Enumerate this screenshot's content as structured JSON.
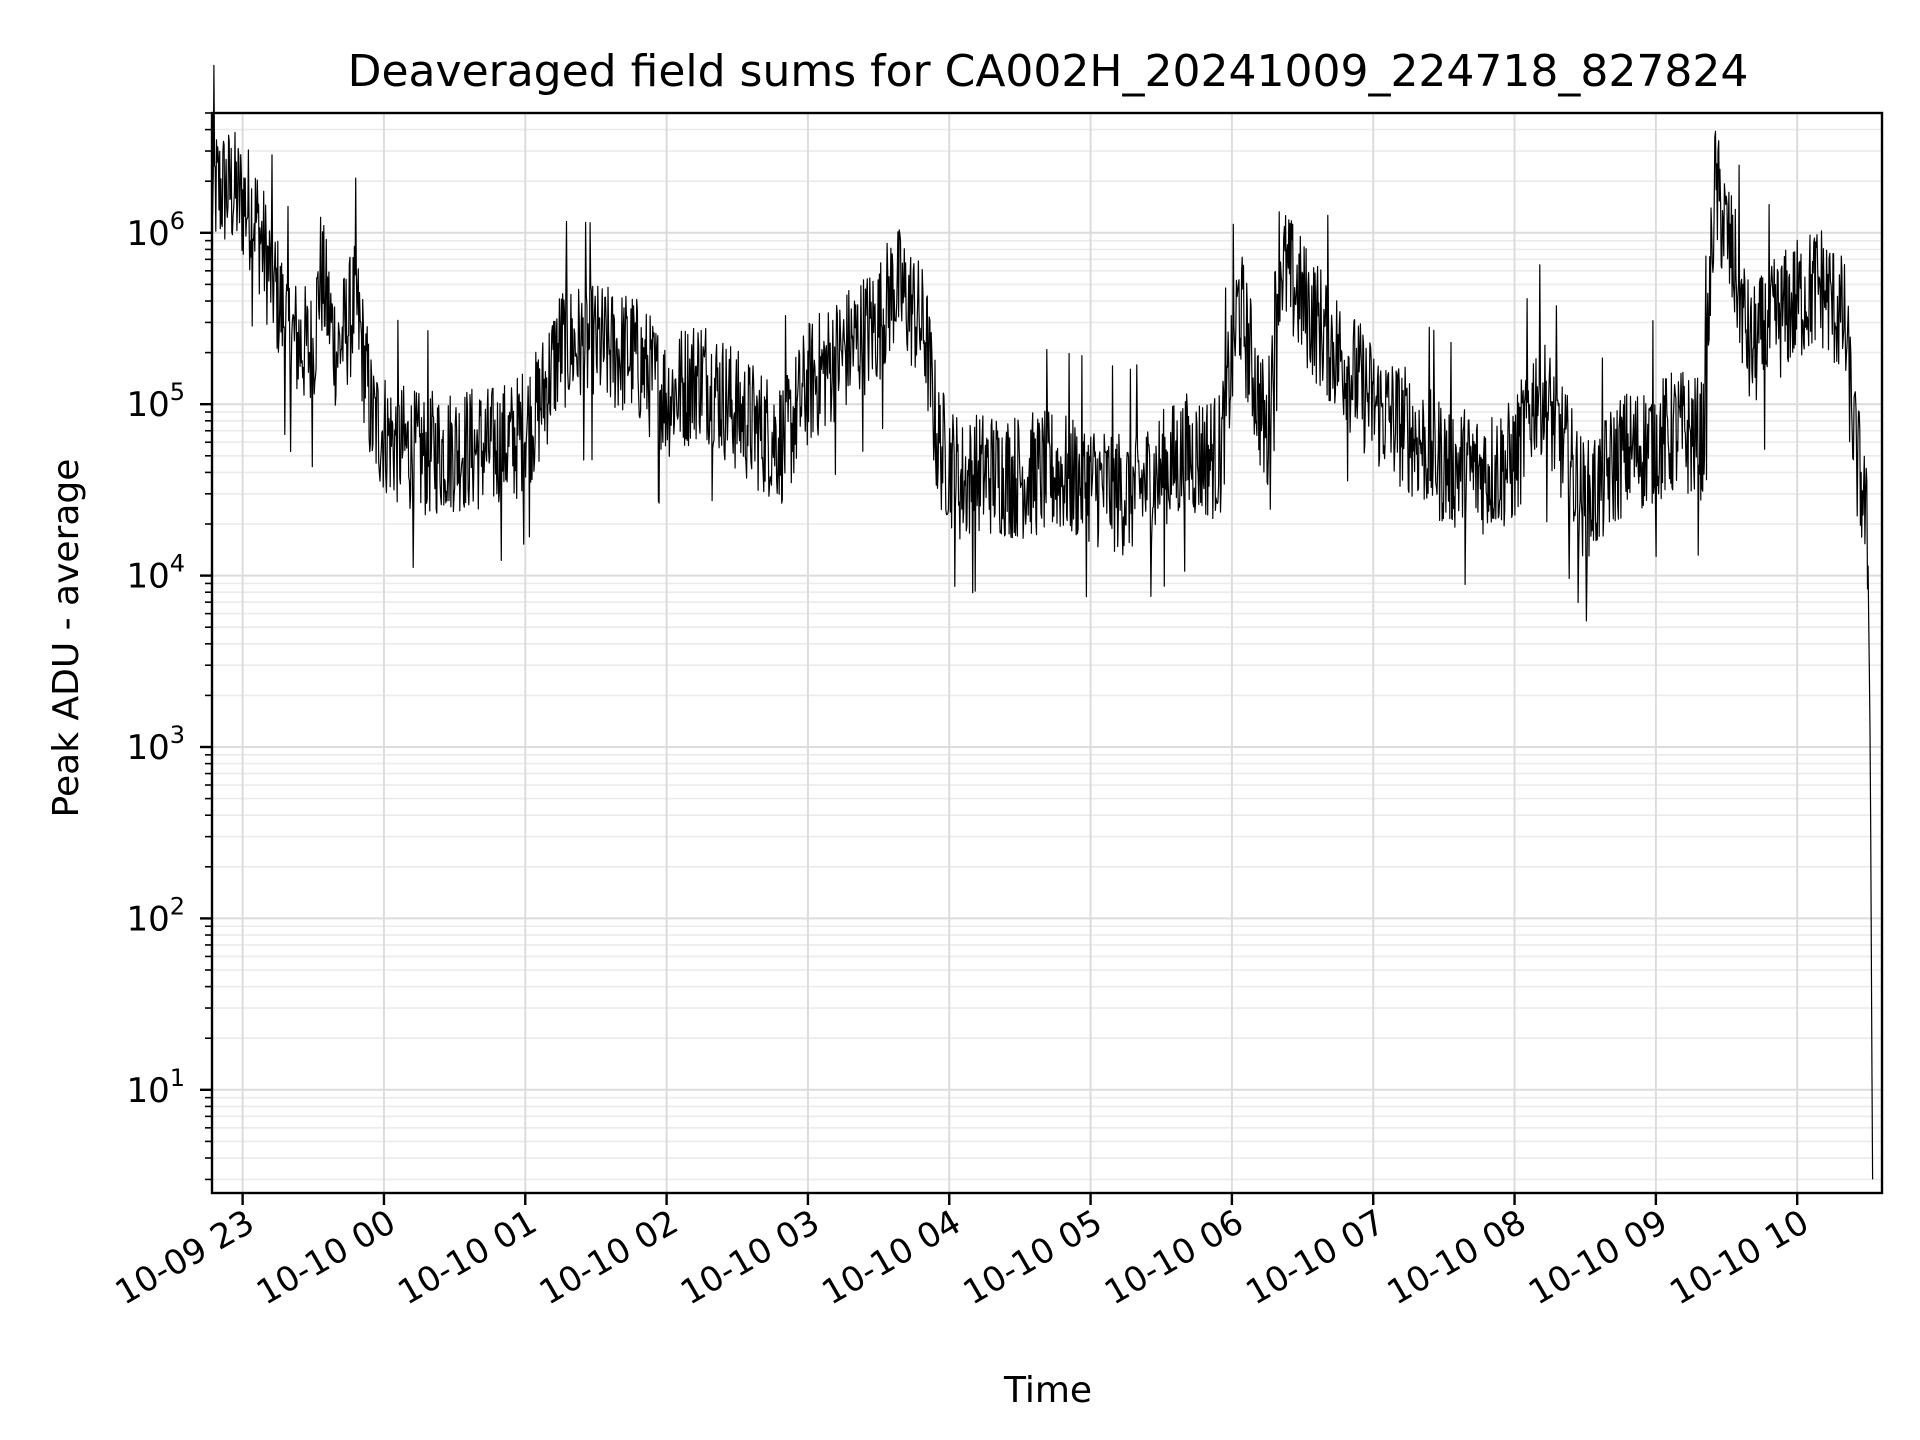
{
  "chart_data": {
    "type": "line",
    "title": "Deaveraged field sums for CA002H_20241009_224718_827824",
    "xlabel": "Time",
    "ylabel": "Peak ADU - average",
    "yscale": "log",
    "ylim": [
      2.5,
      5000000
    ],
    "xlim": [
      "2024-10-09 22:47",
      "2024-10-10 10:36"
    ],
    "x_ticks": [
      {
        "time": "2024-10-09 23:00",
        "label": "10-09 23"
      },
      {
        "time": "2024-10-10 00:00",
        "label": "10-10 00"
      },
      {
        "time": "2024-10-10 01:00",
        "label": "10-10 01"
      },
      {
        "time": "2024-10-10 02:00",
        "label": "10-10 02"
      },
      {
        "time": "2024-10-10 03:00",
        "label": "10-10 03"
      },
      {
        "time": "2024-10-10 04:00",
        "label": "10-10 04"
      },
      {
        "time": "2024-10-10 05:00",
        "label": "10-10 05"
      },
      {
        "time": "2024-10-10 06:00",
        "label": "10-10 06"
      },
      {
        "time": "2024-10-10 07:00",
        "label": "10-10 07"
      },
      {
        "time": "2024-10-10 08:00",
        "label": "10-10 08"
      },
      {
        "time": "2024-10-10 09:00",
        "label": "10-10 09"
      },
      {
        "time": "2024-10-10 10:00",
        "label": "10-10 10"
      }
    ],
    "y_ticks": [
      {
        "value": 10,
        "base": "10",
        "exp": "1"
      },
      {
        "value": 100,
        "base": "10",
        "exp": "2"
      },
      {
        "value": 1000,
        "base": "10",
        "exp": "3"
      },
      {
        "value": 10000,
        "base": "10",
        "exp": "4"
      },
      {
        "value": 100000,
        "base": "10",
        "exp": "5"
      },
      {
        "value": 1000000,
        "base": "10",
        "exp": "6"
      }
    ],
    "grid": true,
    "line_color": "#000000",
    "series": [
      {
        "x": [
          "2024-10-09 22:47",
          "2024-10-09 22:55",
          "2024-10-09 23:05",
          "2024-10-09 23:10",
          "2024-10-09 23:20",
          "2024-10-09 23:30",
          "2024-10-09 23:33",
          "2024-10-09 23:40",
          "2024-10-09 23:45",
          "2024-10-09 23:48",
          "2024-10-09 23:55",
          "2024-10-10 00:05",
          "2024-10-10 00:15",
          "2024-10-10 00:30",
          "2024-10-10 00:45",
          "2024-10-10 00:55",
          "2024-10-10 01:05",
          "2024-10-10 01:15",
          "2024-10-10 01:30",
          "2024-10-10 01:40",
          "2024-10-10 01:45",
          "2024-10-10 02:00",
          "2024-10-10 02:15",
          "2024-10-10 02:30",
          "2024-10-10 02:40",
          "2024-10-10 02:50",
          "2024-10-10 03:00",
          "2024-10-10 03:15",
          "2024-10-10 03:30",
          "2024-10-10 03:37",
          "2024-10-10 03:45",
          "2024-10-10 03:50",
          "2024-10-10 03:55",
          "2024-10-10 04:05",
          "2024-10-10 04:15",
          "2024-10-10 04:30",
          "2024-10-10 04:45",
          "2024-10-10 05:00",
          "2024-10-10 05:15",
          "2024-10-10 05:25",
          "2024-10-10 05:40",
          "2024-10-10 05:55",
          "2024-10-10 06:03",
          "2024-10-10 06:15",
          "2024-10-10 06:20",
          "2024-10-10 06:30",
          "2024-10-10 06:45",
          "2024-10-10 07:00",
          "2024-10-10 07:15",
          "2024-10-10 07:30",
          "2024-10-10 07:45",
          "2024-10-10 08:00",
          "2024-10-10 08:10",
          "2024-10-10 08:20",
          "2024-10-10 08:30",
          "2024-10-10 08:45",
          "2024-10-10 09:00",
          "2024-10-10 09:10",
          "2024-10-10 09:20",
          "2024-10-10 09:25",
          "2024-10-10 09:35",
          "2024-10-10 09:40",
          "2024-10-10 09:50",
          "2024-10-10 10:00",
          "2024-10-10 10:10",
          "2024-10-10 10:20",
          "2024-10-10 10:25",
          "2024-10-10 10:28",
          "2024-10-10 10:30",
          "2024-10-10 10:31",
          "2024-10-10 10:32"
        ],
        "y": [
          1800000,
          1800000,
          1300000,
          700000,
          250000,
          200000,
          600000,
          200000,
          300000,
          400000,
          80000,
          60000,
          50000,
          55000,
          55000,
          60000,
          90000,
          220000,
          220000,
          200000,
          200000,
          110000,
          150000,
          90000,
          70000,
          60000,
          130000,
          200000,
          300000,
          500000,
          350000,
          250000,
          60000,
          35000,
          40000,
          38000,
          40000,
          35000,
          30000,
          35000,
          50000,
          50000,
          400000,
          60000,
          700000,
          400000,
          200000,
          100000,
          70000,
          45000,
          40000,
          45000,
          130000,
          60000,
          25000,
          50000,
          60000,
          70000,
          60000,
          1900000,
          500000,
          200000,
          300000,
          400000,
          500000,
          300000,
          50000,
          30000,
          15000,
          1000,
          3
        ]
      }
    ]
  }
}
